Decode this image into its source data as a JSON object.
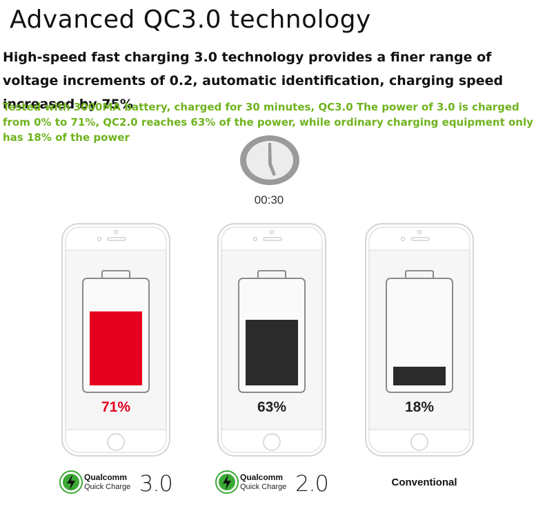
{
  "header": {
    "title": "Advanced QC3.0 technology",
    "subtitle": "High-speed fast charging 3.0 technology provides a finer range of voltage increments of 0.2, automatic identification, charging speed increased by 75%",
    "note": "Tested with 3000MA battery, charged for 30 minutes, QC3.0 The power of 3.0 is charged from 0% to 71%, QC2.0 reaches 63% of the power, while ordinary charging equipment only has 18% of the power"
  },
  "clock": {
    "label": "00:30"
  },
  "phones": [
    {
      "percent_label": "71%",
      "level": 0.71,
      "fill_color": "#e60020",
      "label_color": "#e60020"
    },
    {
      "percent_label": "63%",
      "level": 0.63,
      "fill_color": "#2b2b2b",
      "label_color": "#222222"
    },
    {
      "percent_label": "18%",
      "level": 0.18,
      "fill_color": "#2b2b2b",
      "label_color": "#222222"
    }
  ],
  "brands": [
    {
      "name": "Qualcomm",
      "sub": "Quick Charge",
      "version": "3.0",
      "icon": "qualcomm-quick-charge-icon"
    },
    {
      "name": "Qualcomm",
      "sub": "Quick Charge",
      "version": "2.0",
      "icon": "qualcomm-quick-charge-icon"
    }
  ],
  "conventional_label": "Conventional",
  "colors": {
    "accent_green": "#6fb31e",
    "qc_green": "#3aa935",
    "red": "#e60020"
  }
}
